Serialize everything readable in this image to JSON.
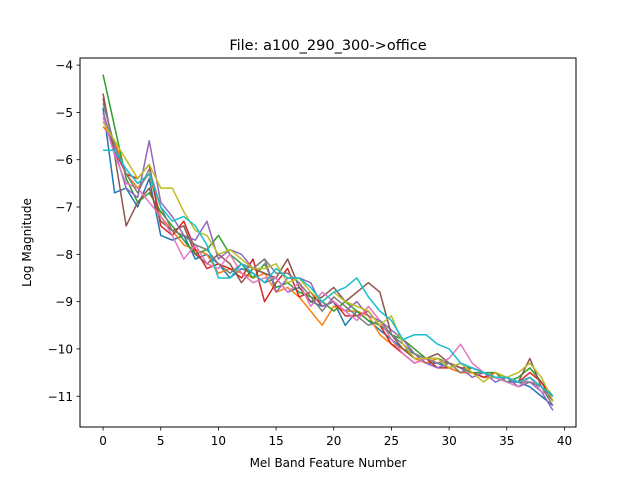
{
  "chart_data": {
    "type": "line",
    "title": "File: a100_290_300->office",
    "xlabel": "Mel Band Feature Number",
    "ylabel": "Log Magnitude",
    "xlim": [
      -2,
      41
    ],
    "ylim": [
      -11.65,
      -3.85
    ],
    "xticks": [
      0,
      5,
      10,
      15,
      20,
      25,
      30,
      35,
      40
    ],
    "yticks": [
      -11,
      -10,
      -9,
      -8,
      -7,
      -6,
      -5,
      -4
    ],
    "grid": false,
    "legend": "none",
    "x": [
      0,
      1,
      2,
      3,
      4,
      5,
      6,
      7,
      8,
      9,
      10,
      11,
      12,
      13,
      14,
      15,
      16,
      17,
      18,
      19,
      20,
      21,
      22,
      23,
      24,
      25,
      26,
      27,
      28,
      29,
      30,
      31,
      32,
      33,
      34,
      35,
      36,
      37,
      38,
      39
    ],
    "series": [
      {
        "color": "#1f77b4",
        "values": [
          -4.9,
          -6.7,
          -6.6,
          -7.0,
          -6.4,
          -7.6,
          -7.7,
          -7.6,
          -8.1,
          -8.0,
          -8.2,
          -8.5,
          -8.3,
          -8.4,
          -8.6,
          -8.5,
          -8.8,
          -8.7,
          -9.0,
          -9.1,
          -9.0,
          -9.5,
          -9.2,
          -9.4,
          -9.6,
          -9.8,
          -10.0,
          -10.1,
          -10.3,
          -10.3,
          -10.4,
          -10.5,
          -10.5,
          -10.6,
          -10.6,
          -10.7,
          -10.7,
          -10.8,
          -11.0,
          -11.2
        ]
      },
      {
        "color": "#ff7f0e",
        "values": [
          -5.3,
          -5.6,
          -6.3,
          -6.6,
          -6.3,
          -7.2,
          -7.5,
          -7.8,
          -7.9,
          -8.0,
          -8.4,
          -8.3,
          -8.4,
          -8.5,
          -8.4,
          -8.8,
          -8.7,
          -8.9,
          -9.2,
          -9.5,
          -9.1,
          -9.2,
          -9.2,
          -9.3,
          -9.7,
          -9.9,
          -10.0,
          -10.2,
          -10.3,
          -10.2,
          -10.4,
          -10.5,
          -10.5,
          -10.6,
          -10.6,
          -10.6,
          -10.7,
          -10.6,
          -10.8,
          -11.1
        ]
      },
      {
        "color": "#2ca02c",
        "values": [
          -4.2,
          -5.3,
          -6.4,
          -6.9,
          -6.7,
          -7.1,
          -7.4,
          -7.7,
          -8.0,
          -7.9,
          -7.6,
          -8.0,
          -8.2,
          -8.5,
          -8.2,
          -8.7,
          -8.6,
          -8.8,
          -8.9,
          -9.0,
          -9.2,
          -9.0,
          -9.2,
          -9.4,
          -9.5,
          -9.7,
          -9.8,
          -10.0,
          -10.2,
          -10.2,
          -10.3,
          -10.4,
          -10.5,
          -10.5,
          -10.5,
          -10.7,
          -10.6,
          -10.4,
          -10.7,
          -11.0
        ]
      },
      {
        "color": "#d62728",
        "values": [
          -4.7,
          -5.8,
          -6.3,
          -6.4,
          -6.1,
          -7.4,
          -7.6,
          -7.3,
          -7.9,
          -8.3,
          -8.2,
          -8.3,
          -8.5,
          -8.1,
          -9.0,
          -8.6,
          -8.3,
          -8.9,
          -8.8,
          -9.1,
          -9.0,
          -9.3,
          -9.3,
          -9.2,
          -9.5,
          -9.9,
          -10.1,
          -10.3,
          -10.2,
          -10.4,
          -10.4,
          -10.3,
          -10.5,
          -10.6,
          -10.5,
          -10.6,
          -10.7,
          -10.5,
          -10.7,
          -11.1
        ]
      },
      {
        "color": "#9467bd",
        "values": [
          -5.0,
          -5.8,
          -6.6,
          -6.8,
          -5.6,
          -6.9,
          -7.2,
          -7.6,
          -7.7,
          -7.3,
          -8.1,
          -7.9,
          -8.0,
          -8.3,
          -8.1,
          -8.8,
          -8.5,
          -8.5,
          -8.6,
          -9.1,
          -9.0,
          -9.2,
          -9.0,
          -9.3,
          -9.4,
          -9.6,
          -9.8,
          -10.1,
          -10.3,
          -10.4,
          -10.3,
          -10.4,
          -10.6,
          -10.5,
          -10.7,
          -10.6,
          -10.8,
          -10.7,
          -10.9,
          -11.3
        ]
      },
      {
        "color": "#8c564b",
        "values": [
          -4.6,
          -5.9,
          -7.4,
          -6.9,
          -6.6,
          -7.3,
          -7.5,
          -7.4,
          -8.0,
          -8.2,
          -8.0,
          -8.2,
          -8.6,
          -8.3,
          -8.4,
          -8.5,
          -8.1,
          -8.7,
          -9.0,
          -8.9,
          -8.7,
          -9.0,
          -8.8,
          -8.6,
          -8.8,
          -9.7,
          -10.0,
          -10.2,
          -10.2,
          -10.1,
          -10.3,
          -10.4,
          -10.4,
          -10.5,
          -10.6,
          -10.6,
          -10.7,
          -10.2,
          -10.8,
          -11.1
        ]
      },
      {
        "color": "#e377c2",
        "values": [
          -5.1,
          -5.9,
          -6.5,
          -6.6,
          -6.9,
          -7.2,
          -7.6,
          -8.1,
          -7.8,
          -8.2,
          -8.3,
          -8.0,
          -8.4,
          -8.6,
          -8.5,
          -8.5,
          -8.8,
          -8.6,
          -9.1,
          -8.8,
          -9.0,
          -9.2,
          -9.4,
          -9.1,
          -9.4,
          -9.8,
          -10.1,
          -10.3,
          -10.2,
          -10.3,
          -10.2,
          -9.9,
          -10.3,
          -10.5,
          -10.6,
          -10.7,
          -10.8,
          -10.6,
          -10.9,
          -11.0
        ]
      },
      {
        "color": "#7f7f7f",
        "values": [
          -4.8,
          -5.7,
          -6.3,
          -6.7,
          -6.2,
          -7.0,
          -7.5,
          -7.6,
          -7.8,
          -7.9,
          -8.2,
          -8.4,
          -8.2,
          -8.3,
          -8.1,
          -8.4,
          -8.4,
          -8.6,
          -8.9,
          -9.2,
          -8.9,
          -9.1,
          -9.3,
          -9.5,
          -9.4,
          -9.7,
          -9.9,
          -10.1,
          -10.2,
          -10.3,
          -10.3,
          -10.5,
          -10.4,
          -10.5,
          -10.6,
          -10.6,
          -10.7,
          -10.7,
          -10.8,
          -11.2
        ]
      },
      {
        "color": "#bcbd22",
        "values": [
          -5.2,
          -5.6,
          -6.0,
          -6.4,
          -6.1,
          -6.6,
          -6.6,
          -7.1,
          -7.5,
          -7.6,
          -8.0,
          -7.9,
          -8.1,
          -8.3,
          -8.3,
          -8.2,
          -8.6,
          -8.5,
          -8.8,
          -9.0,
          -8.8,
          -9.0,
          -9.1,
          -9.2,
          -9.5,
          -9.3,
          -9.9,
          -10.2,
          -10.2,
          -10.2,
          -10.4,
          -10.3,
          -10.5,
          -10.7,
          -10.5,
          -10.6,
          -10.5,
          -10.3,
          -10.6,
          -11.1
        ]
      },
      {
        "color": "#17becf",
        "values": [
          -5.8,
          -5.8,
          -6.2,
          -6.5,
          -6.3,
          -7.0,
          -7.3,
          -7.2,
          -7.4,
          -7.8,
          -8.5,
          -8.5,
          -8.2,
          -8.4,
          -8.6,
          -8.3,
          -8.5,
          -8.5,
          -8.7,
          -9.0,
          -8.8,
          -8.7,
          -8.5,
          -8.9,
          -9.2,
          -9.4,
          -9.8,
          -9.7,
          -9.7,
          -9.9,
          -10.0,
          -10.3,
          -10.4,
          -10.5,
          -10.6,
          -10.6,
          -10.7,
          -10.6,
          -10.8,
          -11.0
        ]
      }
    ]
  }
}
